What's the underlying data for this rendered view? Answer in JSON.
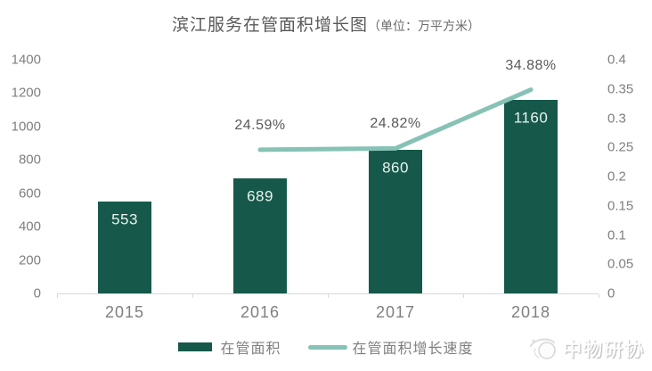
{
  "chart_data": {
    "type": "bar+line combo",
    "title": "滨江服务在管面积增长图",
    "title_unit": "（单位：万平方米）",
    "categories": [
      "2015",
      "2016",
      "2017",
      "2018"
    ],
    "series": [
      {
        "name": "在管面积",
        "type": "bar",
        "axis": "left",
        "values": [
          553,
          689,
          860,
          1160
        ],
        "labels": [
          "553",
          "689",
          "860",
          "1160"
        ],
        "color": "#16594B"
      },
      {
        "name": "在管面积增长速度",
        "type": "line",
        "axis": "right",
        "values": [
          null,
          0.2459,
          0.2482,
          0.3488
        ],
        "labels": [
          "24.59%",
          "24.82%",
          "34.88%"
        ],
        "color": "#87C2B6"
      }
    ],
    "left_axis": {
      "min": 0,
      "max": 1400,
      "ticks": [
        "1400",
        "1200",
        "1000",
        "800",
        "600",
        "400",
        "200",
        "0"
      ]
    },
    "right_axis": {
      "min": 0,
      "max": 0.4,
      "ticks": [
        "0.4",
        "0.35",
        "0.3",
        "0.25",
        "0.2",
        "0.15",
        "0.1",
        "0.05",
        "0"
      ]
    },
    "legend": [
      {
        "label": "在管面积",
        "swatch": "bar",
        "color": "#16594B"
      },
      {
        "label": "在管面积增长速度",
        "swatch": "line",
        "color": "#87C2B6"
      }
    ],
    "grid": false,
    "legend_position": "bottom-center",
    "baseline_color": "#d9d9d9"
  },
  "watermark": {
    "text": "中物研协"
  }
}
